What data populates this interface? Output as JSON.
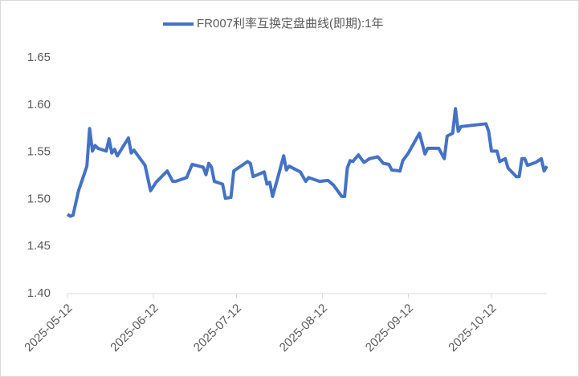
{
  "chart_data": {
    "type": "line",
    "x": [
      "2025-05-12",
      "2025-05-13",
      "2025-05-14",
      "2025-05-16",
      "2025-05-19",
      "2025-05-20",
      "2025-05-21",
      "2025-05-22",
      "2025-05-23",
      "2025-05-26",
      "2025-05-27",
      "2025-05-28",
      "2025-05-29",
      "2025-05-30",
      "2025-06-03",
      "2025-06-04",
      "2025-06-05",
      "2025-06-09",
      "2025-06-11",
      "2025-06-13",
      "2025-06-17",
      "2025-06-19",
      "2025-06-20",
      "2025-06-24",
      "2025-06-26",
      "2025-06-30",
      "2025-07-01",
      "2025-07-02",
      "2025-07-03",
      "2025-07-04",
      "2025-07-07",
      "2025-07-08",
      "2025-07-10",
      "2025-07-11",
      "2025-07-16",
      "2025-07-17",
      "2025-07-18",
      "2025-07-22",
      "2025-07-23",
      "2025-07-24",
      "2025-07-25",
      "2025-07-27",
      "2025-07-29",
      "2025-07-30",
      "2025-07-31",
      "2025-08-04",
      "2025-08-06",
      "2025-08-07",
      "2025-08-11",
      "2025-08-14",
      "2025-08-16",
      "2025-08-19",
      "2025-08-20",
      "2025-08-21",
      "2025-08-22",
      "2025-08-23",
      "2025-08-25",
      "2025-08-27",
      "2025-08-29",
      "2025-09-01",
      "2025-09-03",
      "2025-09-05",
      "2025-09-06",
      "2025-09-09",
      "2025-09-10",
      "2025-09-12",
      "2025-09-16",
      "2025-09-18",
      "2025-09-19",
      "2025-09-23",
      "2025-09-25",
      "2025-09-26",
      "2025-09-28",
      "2025-09-29",
      "2025-09-30",
      "2025-10-01",
      "2025-10-10",
      "2025-10-11",
      "2025-10-12",
      "2025-10-14",
      "2025-10-15",
      "2025-10-17",
      "2025-10-18",
      "2025-10-21",
      "2025-10-22",
      "2025-10-23",
      "2025-10-24",
      "2025-10-25",
      "2025-10-28",
      "2025-10-30",
      "2025-10-31",
      "2025-11-01"
    ],
    "series": [
      {
        "name": "FR007利率互换定盘曲线(即期):1年",
        "color": "#4472c4",
        "values": [
          1.484,
          1.482,
          1.483,
          1.509,
          1.535,
          1.575,
          1.551,
          1.557,
          1.554,
          1.551,
          1.564,
          1.549,
          1.553,
          1.546,
          1.565,
          1.549,
          1.552,
          1.536,
          1.509,
          1.518,
          1.53,
          1.519,
          1.519,
          1.523,
          1.537,
          1.534,
          1.526,
          1.538,
          1.534,
          1.519,
          1.516,
          1.501,
          1.502,
          1.53,
          1.54,
          1.538,
          1.524,
          1.529,
          1.516,
          1.518,
          1.503,
          1.524,
          1.546,
          1.531,
          1.535,
          1.529,
          1.519,
          1.523,
          1.519,
          1.52,
          1.515,
          1.503,
          1.503,
          1.533,
          1.541,
          1.54,
          1.547,
          1.539,
          1.543,
          1.545,
          1.538,
          1.537,
          1.531,
          1.53,
          1.541,
          1.549,
          1.57,
          1.548,
          1.554,
          1.554,
          1.543,
          1.567,
          1.57,
          1.596,
          1.572,
          1.577,
          1.58,
          1.572,
          1.551,
          1.551,
          1.54,
          1.543,
          1.533,
          1.524,
          1.524,
          1.543,
          1.543,
          1.536,
          1.539,
          1.543,
          1.53,
          1.535
        ]
      }
    ],
    "xlim": [
      "2025-05-12",
      "2025-11-01"
    ],
    "xticks": [
      "2025-05-12",
      "2025-06-12",
      "2025-07-12",
      "2025-08-12",
      "2025-09-12",
      "2025-10-12"
    ],
    "ylim": [
      1.4,
      1.65
    ],
    "yticks": [
      {
        "value": 1.4,
        "label": "1.40"
      },
      {
        "value": 1.45,
        "label": "1.45"
      },
      {
        "value": 1.5,
        "label": "1.50"
      },
      {
        "value": 1.55,
        "label": "1.55"
      },
      {
        "value": 1.6,
        "label": "1.60"
      },
      {
        "value": 1.65,
        "label": "1.65"
      }
    ],
    "legend": "top"
  }
}
